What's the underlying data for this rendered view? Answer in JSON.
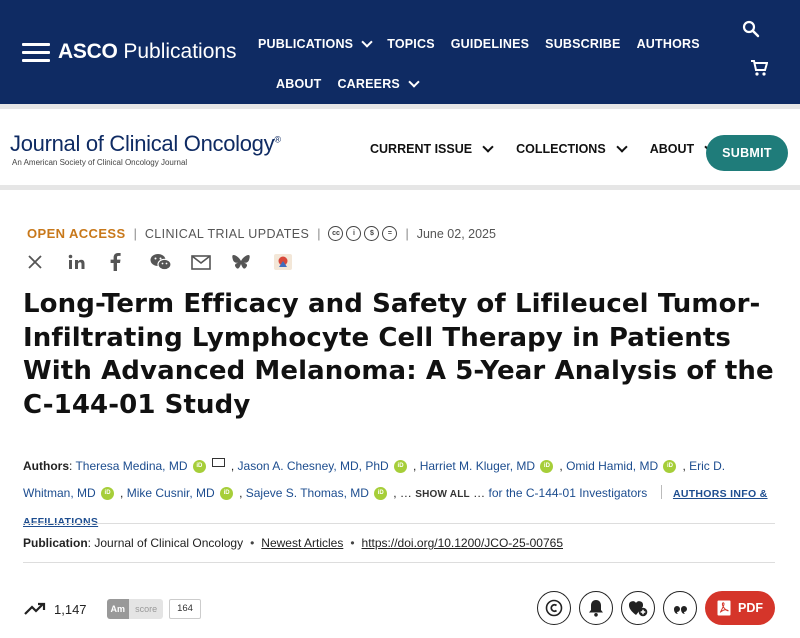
{
  "header": {
    "brand_strong": "ASCO",
    "brand_rest": "Publications",
    "nav_row1": [
      "PUBLICATIONS",
      "TOPICS",
      "GUIDELINES",
      "SUBSCRIBE",
      "AUTHORS"
    ],
    "nav_row2": [
      "ABOUT",
      "CAREERS"
    ],
    "bg_color": "#0f2b63"
  },
  "journal": {
    "name_part1": "Journal",
    "name_part2": "of Clinical Oncology",
    "reg": "®",
    "subtitle": "An American Society of Clinical Oncology Journal",
    "nav": [
      "CURRENT ISSUE",
      "COLLECTIONS",
      "ABOUT"
    ],
    "submit_label": "SUBMIT",
    "submit_color": "#1f7c7a"
  },
  "article": {
    "access": "OPEN ACCESS",
    "section": "CLINICAL TRIAL UPDATES",
    "license_icons": [
      "cc",
      "by",
      "nc",
      "nd"
    ],
    "date": "June 02, 2025",
    "share_icons": [
      "x-icon",
      "linkedin-icon",
      "facebook-icon",
      "wechat-icon",
      "email-icon",
      "bluesky-icon",
      "mendeley-icon"
    ],
    "title": "Long-Term Efficacy and Safety of Lifileucel Tumor-Infiltrating Lymphocyte Cell Therapy in Patients With Advanced Melanoma: A 5-Year Analysis of the C-144-01 Study",
    "authors_label": "Authors",
    "authors": [
      "Theresa Medina, MD",
      "Jason A. Chesney, MD, PhD",
      "Harriet M. Kluger, MD",
      "Omid Hamid, MD",
      "Eric D. Whitman, MD",
      "Mike Cusnir, MD",
      "Sajeve S. Thomas, MD"
    ],
    "show_all": "SHOW ALL",
    "investigators": "for the C-144-01 Investigators",
    "authors_info": "AUTHORS INFO & AFFILIATIONS",
    "publication_label": "Publication",
    "publication_journal": "Journal of Clinical Oncology",
    "publication_newest": "Newest Articles",
    "publication_doi": "https://doi.org/10.1200/JCO-25-00765"
  },
  "metrics": {
    "views": "1,147",
    "altmetric_am": "Am",
    "altmetric_score_label": "score",
    "altmetric_count": "164",
    "pdf_label": "PDF",
    "pdf_color": "#d5352a"
  }
}
